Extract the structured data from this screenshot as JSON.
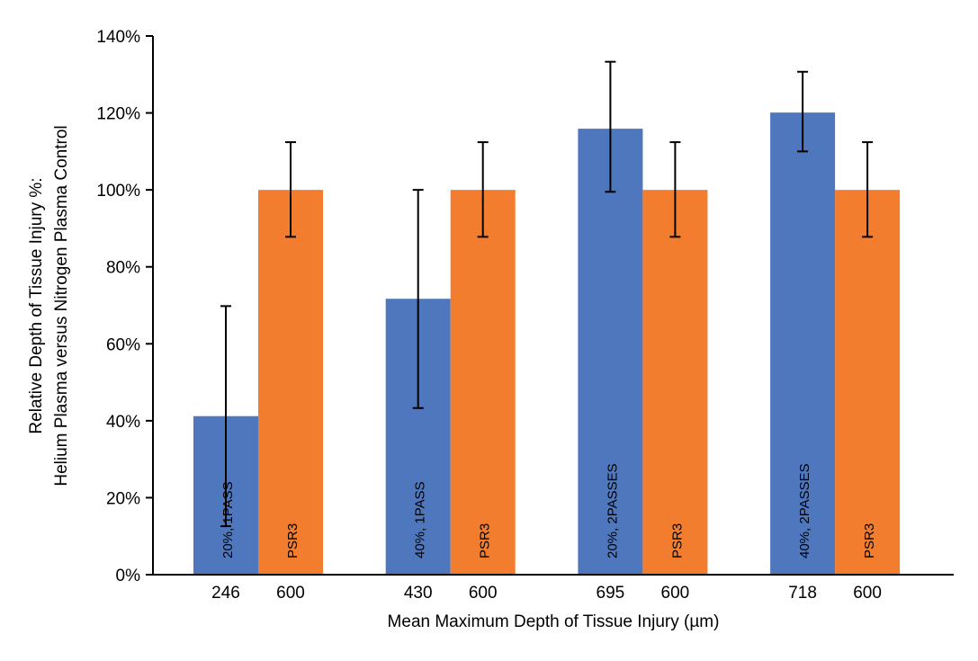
{
  "chart_data": {
    "type": "bar",
    "title": "",
    "xlabel": "Mean Maximum Depth of Tissue Injury (µm)",
    "ylabel_lines": [
      "Relative Depth of Tissue Injury %:",
      "Helium Plasma versus Nitrogen Plasma Control"
    ],
    "ylim": [
      0,
      140
    ],
    "yticks": [
      "0%",
      "20%",
      "40%",
      "60%",
      "80%",
      "100%",
      "120%",
      "140%"
    ],
    "ytick_values": [
      0,
      20,
      40,
      60,
      80,
      100,
      120,
      140
    ],
    "grid": false,
    "colors": {
      "helium": "#4f77be",
      "nitrogen": "#f27d2e"
    },
    "groups": [
      {
        "bars": [
          {
            "category": "246",
            "label": "20%, 1PASS",
            "value": 41.2,
            "err_low": 12.6,
            "err_high": 69.8,
            "series": "helium"
          },
          {
            "category": "600",
            "label": "PSR3",
            "value": 100,
            "err_low": 87.8,
            "err_high": 112.4,
            "series": "nitrogen"
          }
        ]
      },
      {
        "bars": [
          {
            "category": "430",
            "label": "40%, 1PASS",
            "value": 71.7,
            "err_low": 43.3,
            "err_high": 100,
            "series": "helium"
          },
          {
            "category": "600",
            "label": "PSR3",
            "value": 100,
            "err_low": 87.8,
            "err_high": 112.4,
            "series": "nitrogen"
          }
        ]
      },
      {
        "bars": [
          {
            "category": "695",
            "label": "20%, 2PASSES",
            "value": 115.9,
            "err_low": 99.5,
            "err_high": 133.3,
            "series": "helium"
          },
          {
            "category": "600",
            "label": "PSR3",
            "value": 100,
            "err_low": 87.8,
            "err_high": 112.4,
            "series": "nitrogen"
          }
        ]
      },
      {
        "bars": [
          {
            "category": "718",
            "label": "40%, 2PASSES",
            "value": 120.1,
            "err_low": 110,
            "err_high": 130.7,
            "series": "helium"
          },
          {
            "category": "600",
            "label": "PSR3",
            "value": 100,
            "err_low": 87.8,
            "err_high": 112.4,
            "series": "nitrogen"
          }
        ]
      }
    ]
  }
}
